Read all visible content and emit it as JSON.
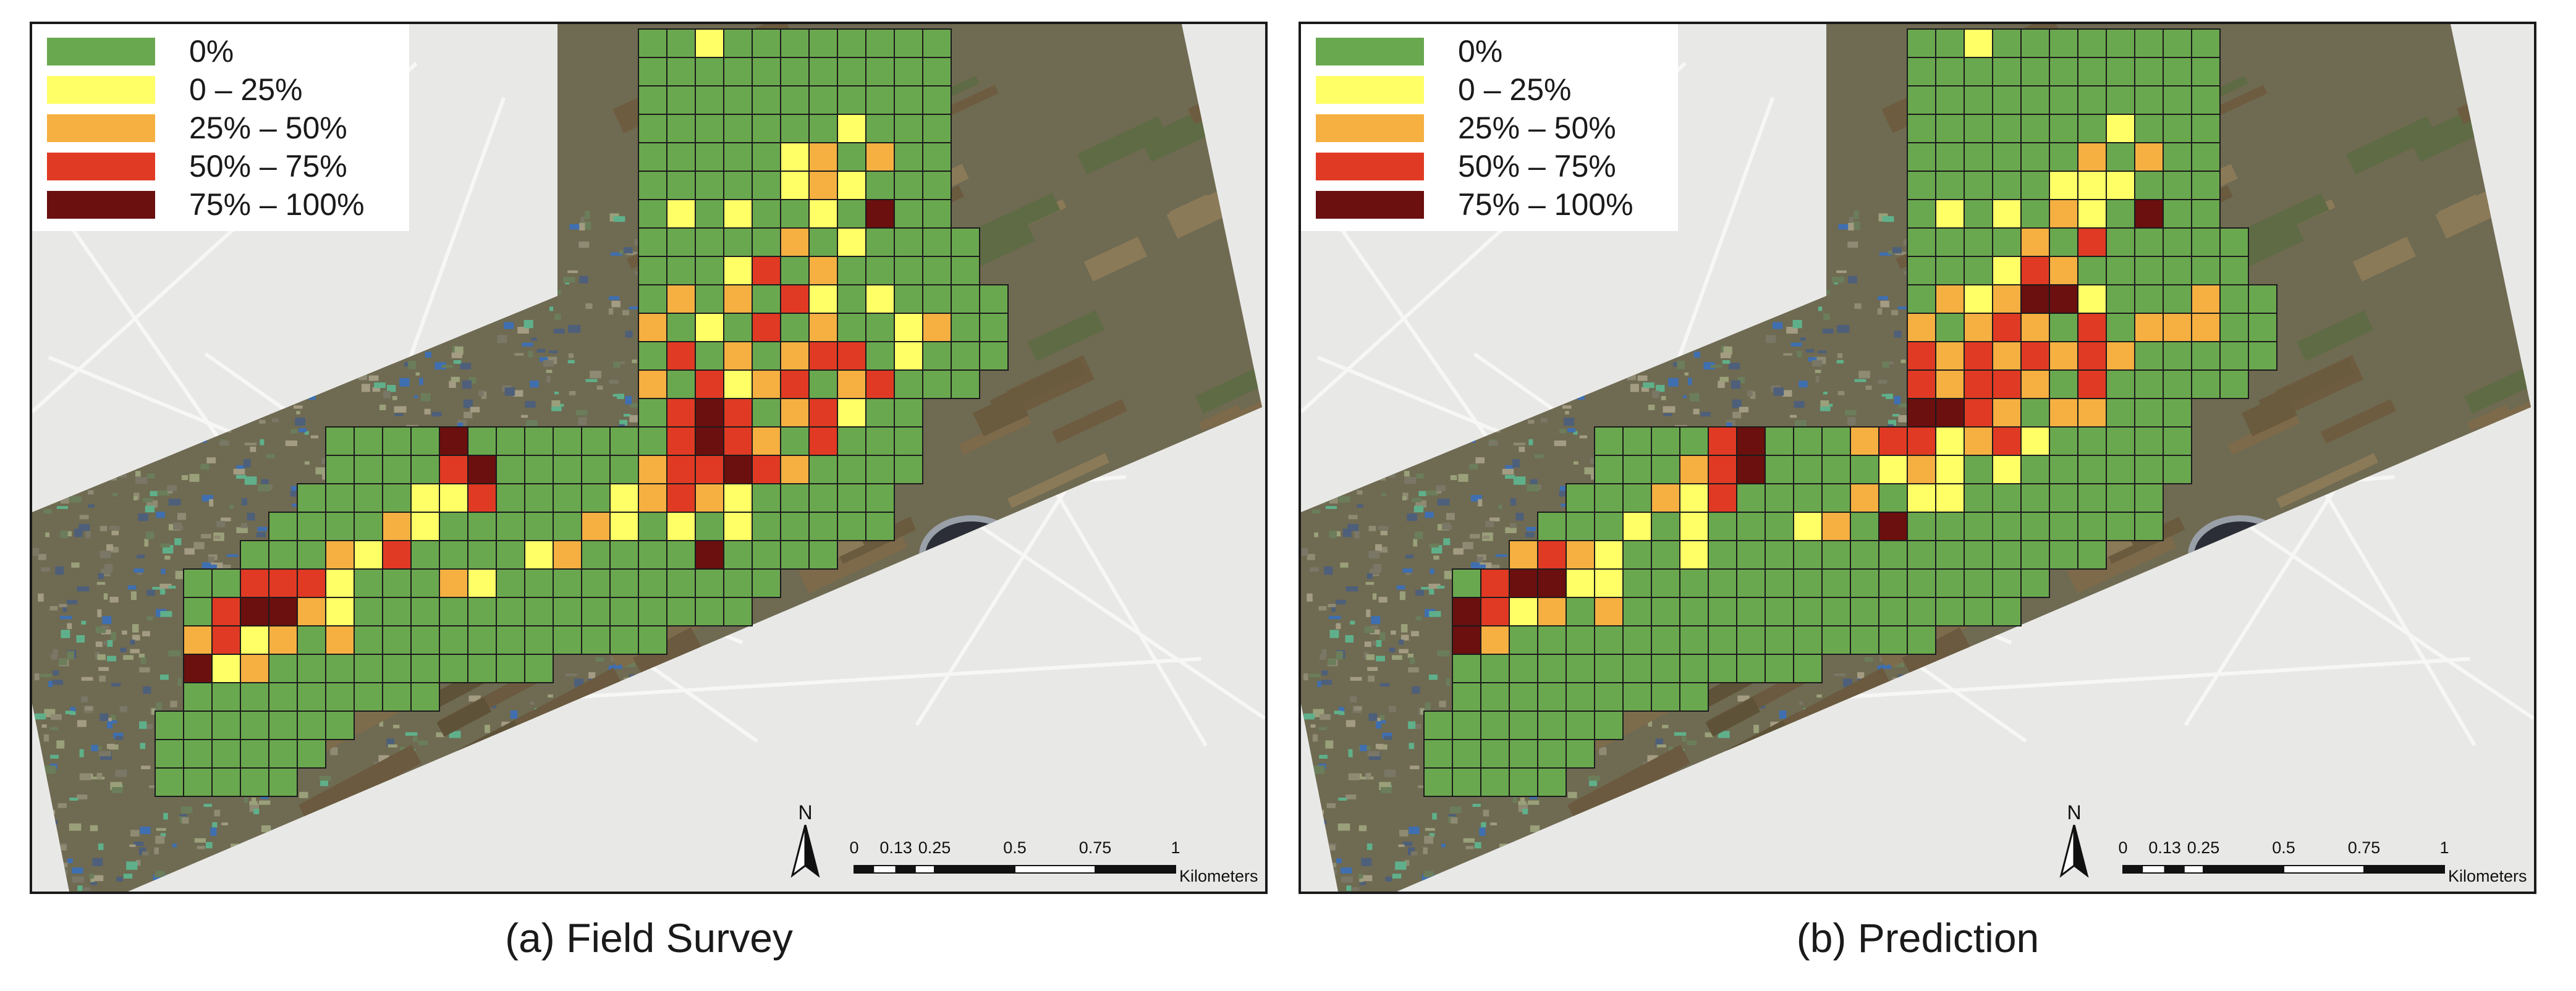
{
  "legend": {
    "items": [
      {
        "label": "0%",
        "color": "#6aa84f"
      },
      {
        "label": "0 – 25%",
        "color": "#ffff66"
      },
      {
        "label": "25% – 50%",
        "color": "#f5b041"
      },
      {
        "label": "50% – 75%",
        "color": "#e03a24"
      },
      {
        "label": "75% – 100%",
        "color": "#6b0f0f"
      }
    ]
  },
  "north_arrow": {
    "letter": "N"
  },
  "scale_bar": {
    "ticks": [
      "0",
      "0.13",
      "0.25",
      "0.5",
      "0.75",
      "1"
    ],
    "unit": "Kilometers"
  },
  "panels": [
    {
      "id": "a",
      "caption": "(a) Field Survey"
    },
    {
      "id": "b",
      "caption": "(b) Prediction"
    }
  ],
  "colors": {
    "grid_outline": "#1b1b1b",
    "imagery_urban": "#8b8a6f",
    "imagery_field": "#7a6a4e",
    "basemap": "#e8e9e7"
  }
}
